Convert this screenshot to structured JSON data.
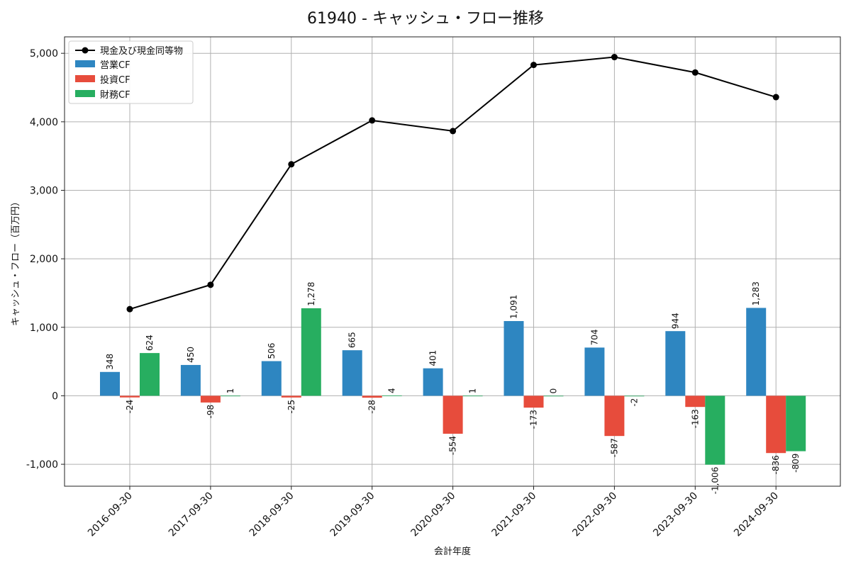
{
  "chart_data": {
    "type": "bar",
    "title": "61940 - キャッシュ・フロー推移",
    "xlabel": "会計年度",
    "ylabel": "キャッシュ・フロー（百万円）",
    "ylim": [
      -1320,
      5240
    ],
    "yticks": [
      -1000,
      0,
      1000,
      2000,
      3000,
      4000,
      5000
    ],
    "ytick_labels": [
      "-1,000",
      "0",
      "1,000",
      "2,000",
      "3,000",
      "4,000",
      "5,000"
    ],
    "grid": true,
    "legend_position": "top-left",
    "categories": [
      "2016-09-30",
      "2017-09-30",
      "2018-09-30",
      "2019-09-30",
      "2020-09-30",
      "2021-09-30",
      "2022-09-30",
      "2023-09-30",
      "2024-09-30"
    ],
    "line_series": {
      "name": "現金及び現金同等物",
      "color": "#000000",
      "values": [
        1265,
        1620,
        3380,
        4020,
        3865,
        4830,
        4945,
        4720,
        4360
      ]
    },
    "series": [
      {
        "name": "営業CF",
        "color": "#2e86c1",
        "values": [
          348,
          450,
          506,
          665,
          401,
          1091,
          704,
          944,
          1283
        ],
        "labels": [
          "348",
          "450",
          "506",
          "665",
          "401",
          "1,091",
          "704",
          "944",
          "1,283"
        ]
      },
      {
        "name": "投資CF",
        "color": "#e74c3c",
        "values": [
          -24,
          -98,
          -25,
          -28,
          -554,
          -173,
          -587,
          -163,
          -836
        ],
        "labels": [
          "-24",
          "-98",
          "-25",
          "-28",
          "-554",
          "-173",
          "-587",
          "-163",
          "-836"
        ]
      },
      {
        "name": "財務CF",
        "color": "#27ae60",
        "values": [
          624,
          1,
          1278,
          4,
          1,
          0,
          -2,
          -1006,
          -809
        ],
        "labels": [
          "624",
          "1",
          "1,278",
          "4",
          "1",
          "0",
          "-2",
          "-1,006",
          "-809"
        ]
      }
    ]
  }
}
